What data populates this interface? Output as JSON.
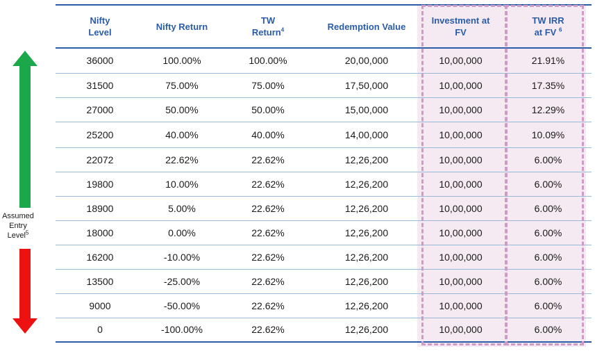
{
  "headers": {
    "nifty_level": [
      "Nifty",
      "Level"
    ],
    "nifty_return": "Nifty Return",
    "tw_return": "TW",
    "tw_return_line2": "Return",
    "tw_return_sup": "4",
    "redemption_value": "Redemption Value",
    "investment_fv": [
      "Investment at",
      "FV"
    ],
    "tw_irr": "TW IRR",
    "tw_irr_line2": "at FV",
    "tw_irr_sup": "6"
  },
  "side_label": {
    "line1": "Assumed",
    "line2": "Entry",
    "line3": "Level",
    "sup": "5"
  },
  "rows": [
    [
      "36000",
      "100.00%",
      "100.00%",
      "20,00,000",
      "10,00,000",
      "21.91%"
    ],
    [
      "31500",
      "75.00%",
      "75.00%",
      "17,50,000",
      "10,00,000",
      "17.35%"
    ],
    [
      "27000",
      "50.00%",
      "50.00%",
      "15,00,000",
      "10,00,000",
      "12.29%"
    ],
    [
      "25200",
      "40.00%",
      "40.00%",
      "14,00,000",
      "10,00,000",
      "10.09%"
    ],
    [
      "22072",
      "22.62%",
      "22.62%",
      "12,26,200",
      "10,00,000",
      "6.00%"
    ],
    [
      "19800",
      "10.00%",
      "22.62%",
      "12,26,200",
      "10,00,000",
      "6.00%"
    ],
    [
      "18900",
      "5.00%",
      "22.62%",
      "12,26,200",
      "10,00,000",
      "6.00%"
    ],
    [
      "18000",
      "0.00%",
      "22.62%",
      "12,26,200",
      "10,00,000",
      "6.00%"
    ],
    [
      "16200",
      "-10.00%",
      "22.62%",
      "12,26,200",
      "10,00,000",
      "6.00%"
    ],
    [
      "13500",
      "-25.00%",
      "22.62%",
      "12,26,200",
      "10,00,000",
      "6.00%"
    ],
    [
      "9000",
      "-50.00%",
      "22.62%",
      "12,26,200",
      "10,00,000",
      "6.00%"
    ],
    [
      "0",
      "-100.00%",
      "22.62%",
      "12,26,200",
      "10,00,000",
      "6.00%"
    ]
  ],
  "colors": {
    "header_text": "#2a5ca8",
    "highlight_bg": "#f6eaf2",
    "dash": "#cf9ac6",
    "up_arrow": "#1aa84a",
    "down_arrow": "#ee1111"
  }
}
